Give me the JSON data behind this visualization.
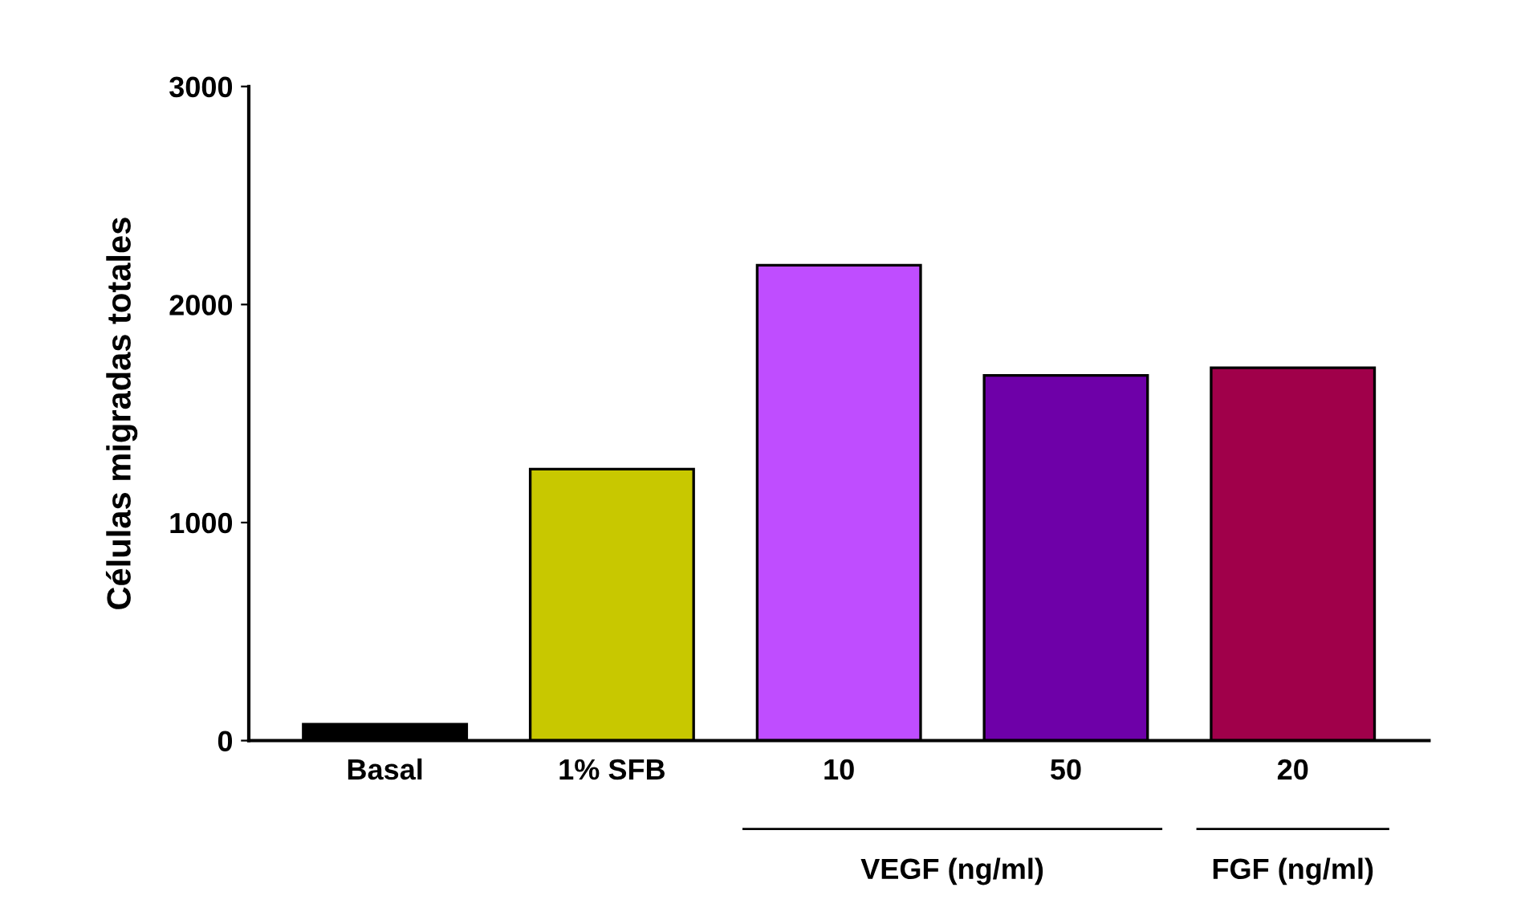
{
  "chart_data": {
    "type": "bar",
    "ylabel": "Células migradas totales",
    "categories": [
      "Basal",
      "1% SFB",
      "10",
      "50",
      "20"
    ],
    "values": [
      75,
      1245,
      2180,
      1675,
      1710
    ],
    "colors": [
      "#000000",
      "#c8c800",
      "#bf4dff",
      "#6e00a8",
      "#a0004a"
    ],
    "ylim": [
      0,
      3000
    ],
    "yticks": [
      0,
      1000,
      2000,
      3000
    ],
    "grid": false,
    "legend": false,
    "annotations": [
      "VEGF (ng/ml)",
      "FGF (ng/ml)"
    ]
  }
}
